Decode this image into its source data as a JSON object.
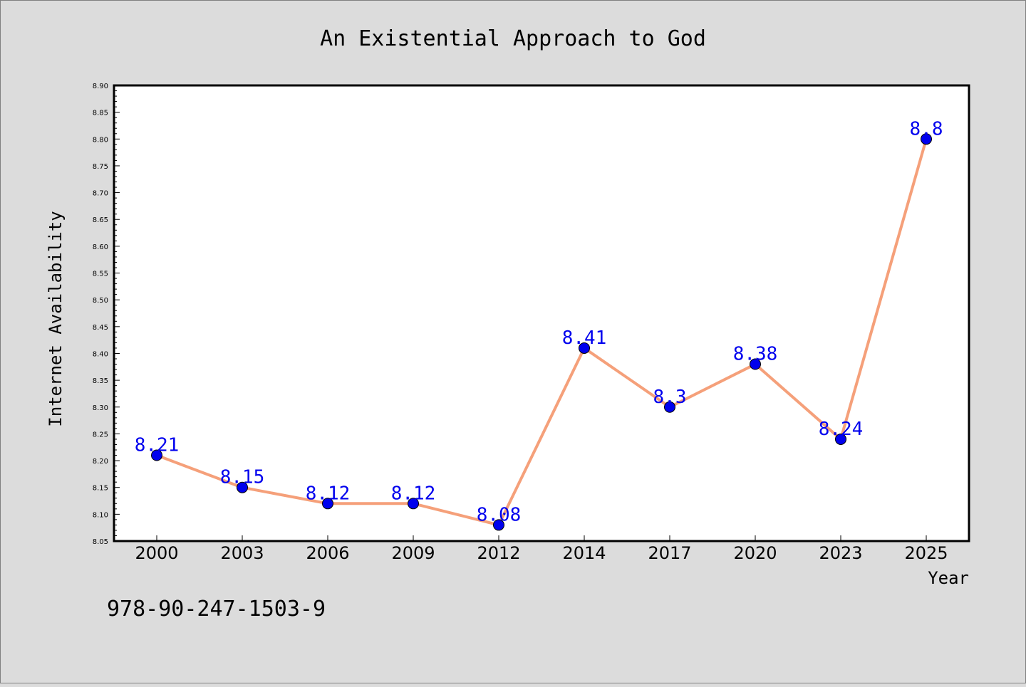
{
  "chart_data": {
    "type": "line",
    "title": "An Existential Approach to God",
    "xlabel": "Year",
    "ylabel": "Internet Availability",
    "categories": [
      "2000",
      "2003",
      "2006",
      "2009",
      "2012",
      "2014",
      "2017",
      "2020",
      "2023",
      "2025"
    ],
    "series": [
      {
        "values": [
          8.21,
          8.15,
          8.12,
          8.12,
          8.08,
          8.41,
          8.3,
          8.38,
          8.24,
          8.8
        ],
        "value_labels": [
          "8.21",
          "8.15",
          "8.12",
          "8.12",
          "8.08",
          "8.41",
          "8.3",
          "8.38",
          "8.24",
          "8.8"
        ],
        "line_color": "#f5a07a",
        "marker_color": "#0000ee"
      }
    ],
    "ylim": [
      8.05,
      8.9
    ],
    "yticks": [
      "8.05",
      "8.10",
      "8.15",
      "8.20",
      "8.25",
      "8.30",
      "8.35",
      "8.40",
      "8.45",
      "8.50",
      "8.55",
      "8.60",
      "8.65",
      "8.70",
      "8.75",
      "8.80",
      "8.85",
      "8.90"
    ],
    "grid": false,
    "legend": "none"
  },
  "footer": {
    "isbn": "978-90-247-1503-9"
  },
  "colors": {
    "background": "#dcdcdc",
    "plot_background": "#ffffff",
    "label_color": "#0000ee"
  }
}
